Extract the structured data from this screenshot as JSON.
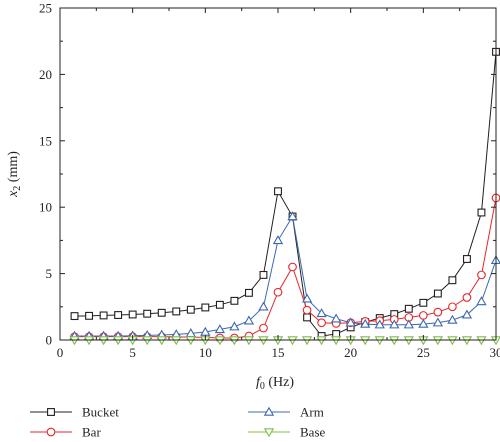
{
  "chart_data": {
    "type": "line",
    "xlabel_var": "f",
    "xlabel_sub": "0",
    "xlabel_unit": " (Hz)",
    "ylabel_var": "x",
    "ylabel_sub": "2",
    "ylabel_unit": " (mm)",
    "xlim": [
      0,
      30
    ],
    "ylim": [
      0,
      25
    ],
    "x_ticks": [
      0,
      5,
      10,
      15,
      20,
      25,
      30
    ],
    "y_ticks": [
      0,
      5,
      10,
      15,
      20,
      25
    ],
    "grid": false,
    "legend_position": "bottom",
    "x": [
      1,
      2,
      3,
      4,
      5,
      6,
      7,
      8,
      9,
      10,
      11,
      12,
      13,
      14,
      15,
      16,
      17,
      18,
      19,
      20,
      21,
      22,
      23,
      24,
      25,
      26,
      27,
      28,
      29,
      30
    ],
    "series": [
      {
        "name": "Bucket",
        "marker": "square",
        "color": "#231f20",
        "values": [
          1.8,
          1.82,
          1.85,
          1.88,
          1.92,
          1.98,
          2.05,
          2.15,
          2.28,
          2.45,
          2.65,
          2.95,
          3.55,
          4.9,
          11.2,
          9.3,
          1.7,
          0.3,
          0.45,
          0.95,
          1.35,
          1.65,
          1.95,
          2.35,
          2.8,
          3.5,
          4.5,
          6.1,
          9.6,
          21.7
        ]
      },
      {
        "name": "Bar",
        "marker": "circle",
        "color": "#e8262b",
        "values": [
          0.25,
          0.25,
          0.25,
          0.25,
          0.25,
          0.25,
          0.25,
          0.24,
          0.22,
          0.2,
          0.15,
          0.15,
          0.3,
          0.9,
          3.6,
          5.5,
          2.25,
          1.3,
          1.25,
          1.3,
          1.4,
          1.45,
          1.55,
          1.7,
          1.85,
          2.1,
          2.5,
          3.2,
          4.9,
          10.7
        ]
      },
      {
        "name": "Arm",
        "marker": "triangle-up",
        "color": "#3c68b1",
        "values": [
          0.3,
          0.3,
          0.3,
          0.3,
          0.32,
          0.35,
          0.38,
          0.42,
          0.5,
          0.6,
          0.8,
          1.0,
          1.45,
          2.5,
          7.5,
          9.3,
          3.1,
          2.0,
          1.6,
          1.3,
          1.2,
          1.15,
          1.15,
          1.15,
          1.2,
          1.3,
          1.5,
          1.9,
          2.9,
          6.0
        ]
      },
      {
        "name": "Base",
        "marker": "triangle-down",
        "color": "#7cbf42",
        "values": [
          0,
          0,
          0,
          0,
          0,
          0,
          0,
          0,
          0,
          0,
          0,
          0,
          0,
          0,
          0,
          0,
          0,
          0,
          0,
          0,
          0,
          0,
          0,
          0,
          0,
          0,
          0,
          0,
          0,
          0
        ]
      }
    ]
  }
}
